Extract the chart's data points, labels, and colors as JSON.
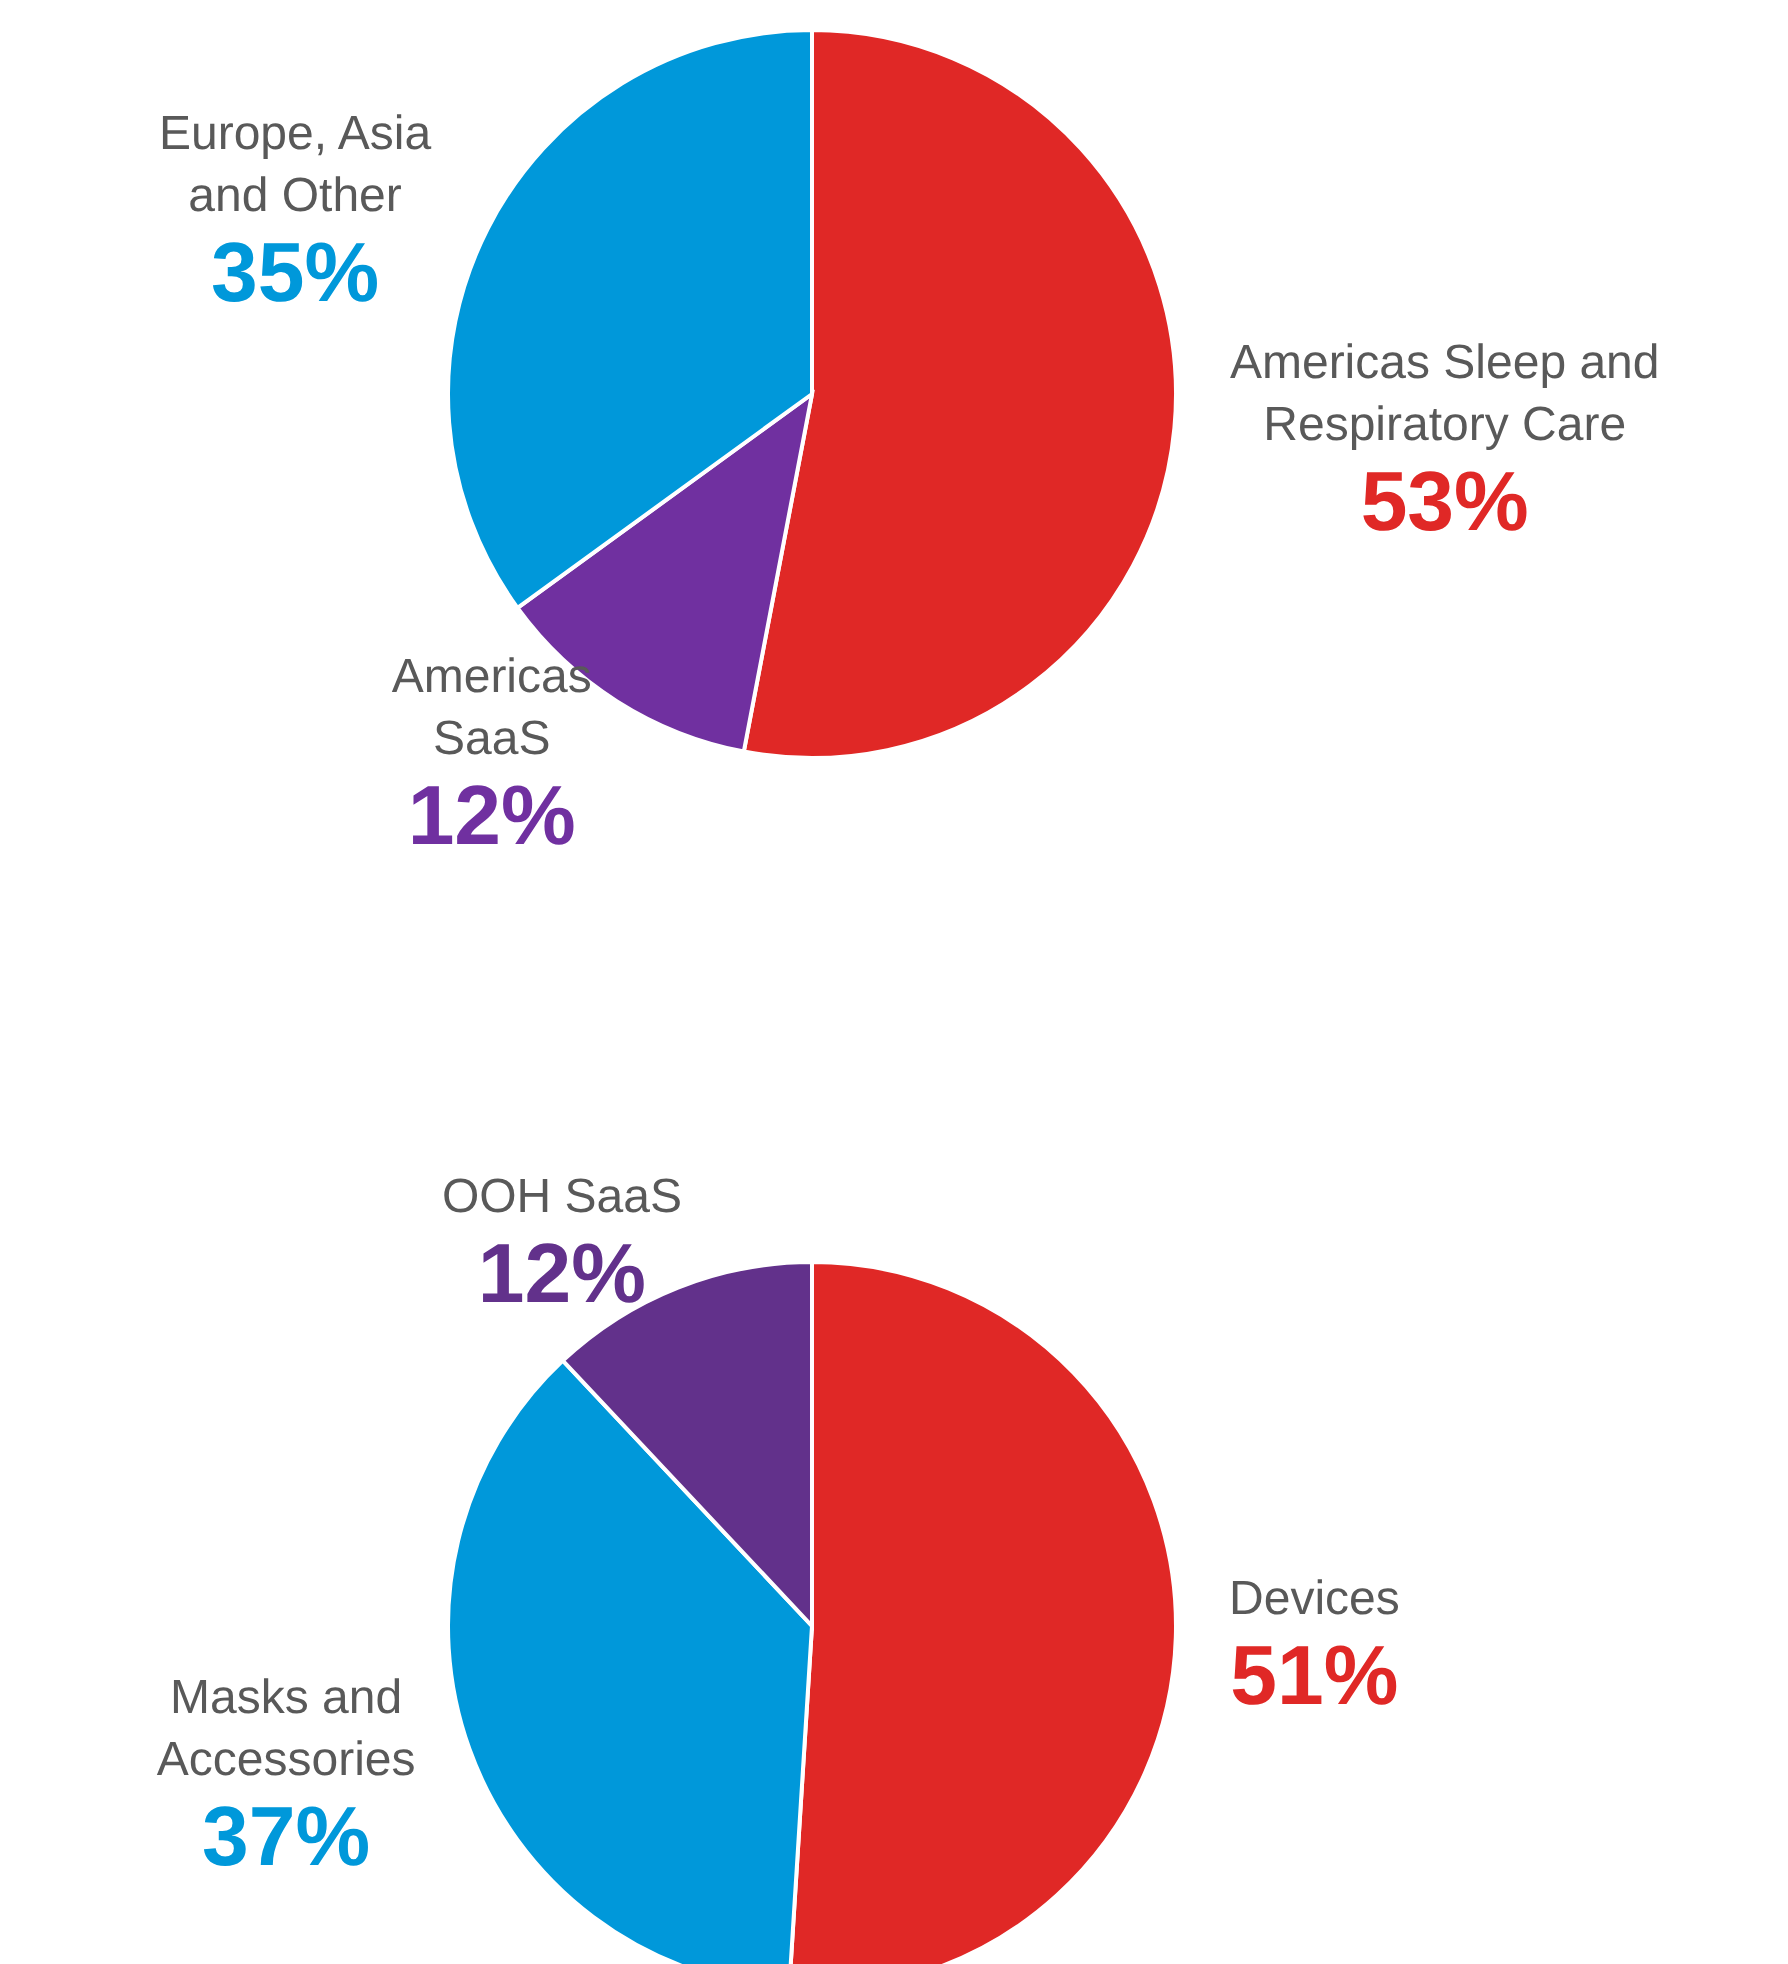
{
  "chart_data": [
    {
      "type": "pie",
      "categories": [
        "Americas Sleep and\nRespiratory Care",
        "Americas\nSaaS",
        "Europe, Asia\nand Other"
      ],
      "values": [
        53,
        12,
        35
      ],
      "colors": [
        "#e02826",
        "#7030a0",
        "#0098da"
      ],
      "value_labels": [
        "53%",
        "12%",
        "35%"
      ]
    },
    {
      "type": "pie",
      "categories": [
        "Devices",
        "Masks and\nAccessories",
        "OOH SaaS"
      ],
      "values": [
        51,
        37,
        12
      ],
      "colors": [
        "#e02826",
        "#0098da",
        "#62318b"
      ],
      "value_labels": [
        "51%",
        "37%",
        "12%"
      ]
    }
  ]
}
